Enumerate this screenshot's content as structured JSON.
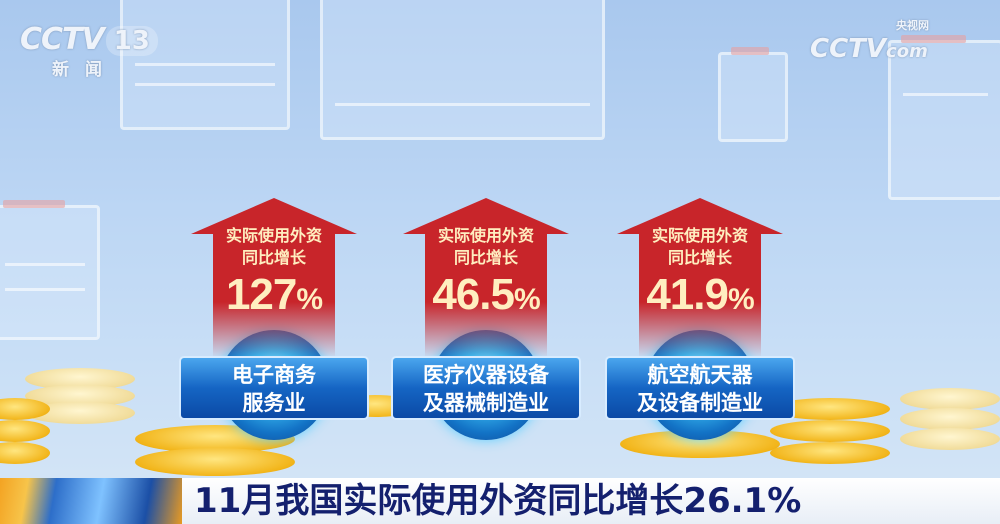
{
  "channel_logo": {
    "brand": "CCTV",
    "channel": "13",
    "sub": "新闻"
  },
  "watermark": {
    "brand": "CCTV",
    "domain": "com",
    "cn": "央视网"
  },
  "items": [
    {
      "line1": "实际使用外资",
      "line2": "同比增长",
      "value": "127",
      "unit": "%",
      "label1": "电子商务",
      "label2": "服务业"
    },
    {
      "line1": "实际使用外资",
      "line2": "同比增长",
      "value": "46.5",
      "unit": "%",
      "label1": "医疗仪器设备",
      "label2": "及器械制造业"
    },
    {
      "line1": "实际使用外资",
      "line2": "同比增长",
      "value": "41.9",
      "unit": "%",
      "label1": "航空航天器",
      "label2": "及设备制造业"
    }
  ],
  "headline": "11月我国实际使用外资同比增长26.1%",
  "colors": {
    "arrow": "#c8252a",
    "label_bg": "#1565c4",
    "headline_text": "#14206e"
  }
}
